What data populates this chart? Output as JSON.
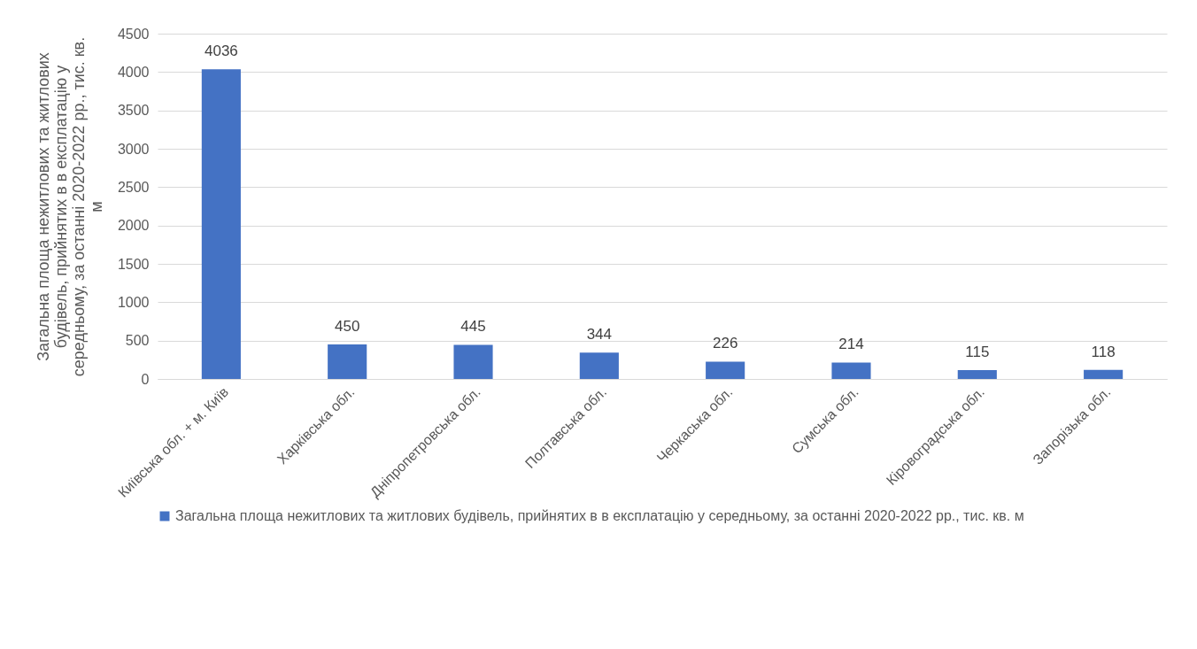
{
  "chart_data": {
    "type": "bar",
    "ylabel": "Загальна площа нежитлових та житлових будівель, прийнятих в в експлатацію у середньому, за останні 2020-2022 рр., тис. кв. м",
    "categories": [
      "Київська обл. + м. Київ",
      "Харківська обл.",
      "Дніпропетровська обл.",
      "Полтавська обл.",
      "Черкаська обл.",
      "Сумська обл.",
      "Кіровоградська обл.",
      "Запорізька обл."
    ],
    "series": [
      {
        "name": "Загальна площа нежитлових та житлових будівель, прийнятих в в експлатацію у середньому, за останні 2020-2022 рр., тис. кв. м",
        "color": "#4472c4",
        "values": [
          4036,
          450,
          445,
          344,
          226,
          214,
          115,
          118
        ]
      }
    ],
    "ylim": [
      0,
      4500
    ],
    "yticks": [
      0,
      500,
      1000,
      1500,
      2000,
      2500,
      3000,
      3500,
      4000,
      4500
    ],
    "grid": "y",
    "legend": "bottom",
    "data_labels": true
  }
}
